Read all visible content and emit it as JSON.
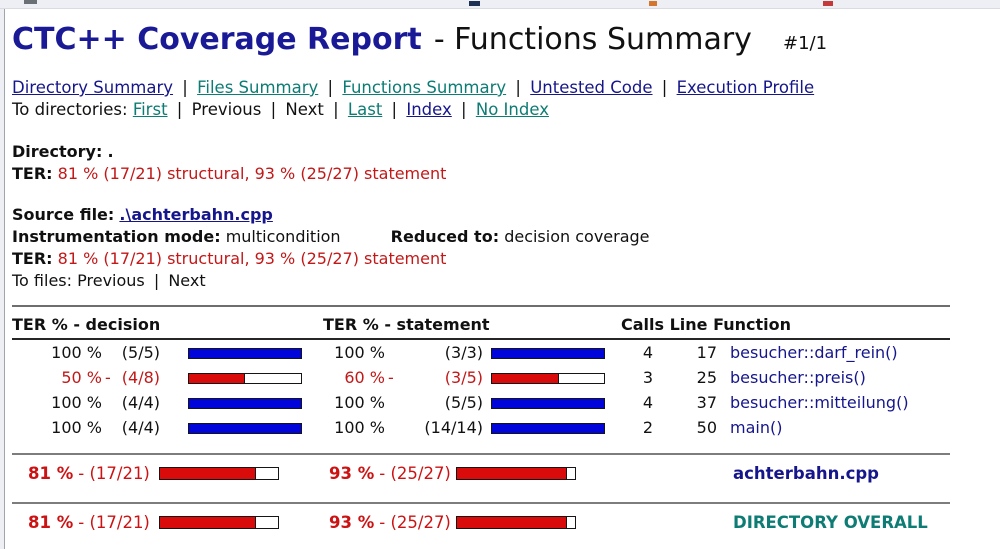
{
  "colors": {
    "navy_link": "#16168c",
    "teal_link": "#0d7c74",
    "title_navy": "#1a1a96",
    "ter_red": "#c21818",
    "summary_red": "#cc1212",
    "bar_blue": "#0205da",
    "bar_red": "#da0b0b"
  },
  "header": {
    "title": "CTC++ Coverage Report",
    "subtitle": "- Functions Summary",
    "page": "#1/1"
  },
  "nav": {
    "sep": "|",
    "links": [
      "Directory Summary",
      "Files Summary",
      "Functions Summary",
      "Untested Code",
      "Execution Profile"
    ],
    "to_dirs_label": "To directories:",
    "to_dirs": [
      "First",
      "Previous",
      "Next",
      "Last",
      "Index",
      "No Index"
    ]
  },
  "directory": {
    "label": "Directory:",
    "value": ".",
    "ter_label": "TER:",
    "ter": "81 % (17/21) structural, 93 % (25/27) statement"
  },
  "source": {
    "label": "Source file:",
    "file": ".\\achterbahn.cpp",
    "mode_label": "Instrumentation mode:",
    "mode": "multicondition",
    "reduced_label": "Reduced to:",
    "reduced": "decision coverage",
    "ter_label": "TER:",
    "ter": "81 % (17/21) structural, 93 % (25/27) statement",
    "to_files_label": "To files:",
    "to_files_prev": "Previous",
    "to_files_next": "Next"
  },
  "table": {
    "h_dec": "TER % - decision",
    "h_stm": "TER % - statement",
    "h_right": "Calls Line Function",
    "rows": [
      {
        "dec_pct": "100 %",
        "dec_flag": "",
        "dec_ratio": "(5/5)",
        "dec_fill": 100,
        "stm_pct": "100 %",
        "stm_flag": "",
        "stm_ratio": "(3/3)",
        "stm_fill": 100,
        "calls": "4",
        "line": "17",
        "function": "besucher::darf_rein()"
      },
      {
        "dec_pct": "50 %",
        "dec_flag": "-",
        "dec_ratio": "(4/8)",
        "dec_fill": 50,
        "stm_pct": "60 %",
        "stm_flag": "-",
        "stm_ratio": "(3/5)",
        "stm_fill": 60,
        "calls": "3",
        "line": "25",
        "function": "besucher::preis()"
      },
      {
        "dec_pct": "100 %",
        "dec_flag": "",
        "dec_ratio": "(4/4)",
        "dec_fill": 100,
        "stm_pct": "100 %",
        "stm_flag": "",
        "stm_ratio": "(5/5)",
        "stm_fill": 100,
        "calls": "4",
        "line": "37",
        "function": "besucher::mitteilung()"
      },
      {
        "dec_pct": "100 %",
        "dec_flag": "",
        "dec_ratio": "(4/4)",
        "dec_fill": 100,
        "stm_pct": "100 %",
        "stm_flag": "",
        "stm_ratio": "(14/14)",
        "stm_fill": 100,
        "calls": "2",
        "line": "50",
        "function": "main()"
      }
    ],
    "summary": [
      {
        "dec_pct": "81 %",
        "dec_rest": "- (17/21)",
        "dec_fill": 81,
        "stm_pct": "93 %",
        "stm_rest": "- (25/27)",
        "stm_fill": 93,
        "label": "achterbahn.cpp"
      },
      {
        "dec_pct": "81 %",
        "dec_rest": "- (17/21)",
        "dec_fill": 81,
        "stm_pct": "93 %",
        "stm_rest": "- (25/27)",
        "stm_fill": 93,
        "label": "DIRECTORY OVERALL"
      }
    ]
  }
}
